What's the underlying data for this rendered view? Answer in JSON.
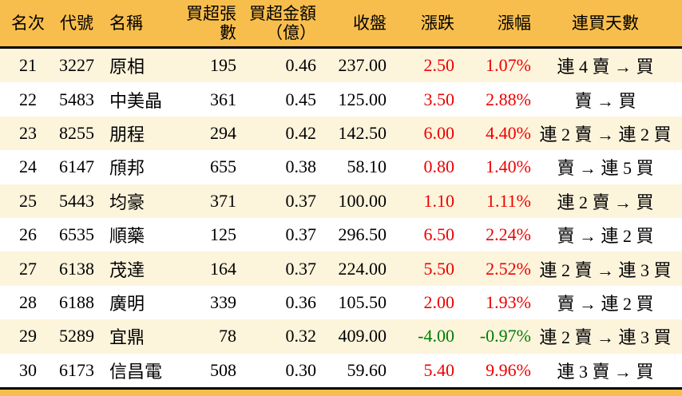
{
  "colors": {
    "frame": "#F8BE4D",
    "header_bg": "#F8BE4D",
    "row_bg": "#FFFFFF",
    "row_alt_bg": "#FDF4DC",
    "text": "#000000",
    "up": "#EC0000",
    "down": "#007E00",
    "divider": "#000000"
  },
  "table": {
    "columns": [
      {
        "key": "rank",
        "label": "名次"
      },
      {
        "key": "code",
        "label": "代號"
      },
      {
        "key": "name",
        "label": "名稱"
      },
      {
        "key": "volume",
        "label": "買超張數"
      },
      {
        "key": "amount",
        "label": "買超金額\n（億）"
      },
      {
        "key": "close",
        "label": "收盤"
      },
      {
        "key": "change",
        "label": "漲跌"
      },
      {
        "key": "change_pct",
        "label": "漲幅"
      },
      {
        "key": "streak",
        "label": "連買天數"
      }
    ],
    "rows": [
      {
        "rank": "21",
        "code": "3227",
        "name": "原相",
        "volume": "195",
        "amount": "0.46",
        "close": "237.00",
        "change": "2.50",
        "change_pct": "1.07%",
        "direction": "up",
        "streak": "連 4 賣 → 買"
      },
      {
        "rank": "22",
        "code": "5483",
        "name": "中美晶",
        "volume": "361",
        "amount": "0.45",
        "close": "125.00",
        "change": "3.50",
        "change_pct": "2.88%",
        "direction": "up",
        "streak": "賣 → 買"
      },
      {
        "rank": "23",
        "code": "8255",
        "name": "朋程",
        "volume": "294",
        "amount": "0.42",
        "close": "142.50",
        "change": "6.00",
        "change_pct": "4.40%",
        "direction": "up",
        "streak": "連 2 賣 → 連 2 買"
      },
      {
        "rank": "24",
        "code": "6147",
        "name": "頎邦",
        "volume": "655",
        "amount": "0.38",
        "close": "58.10",
        "change": "0.80",
        "change_pct": "1.40%",
        "direction": "up",
        "streak": "賣 → 連 5 買"
      },
      {
        "rank": "25",
        "code": "5443",
        "name": "均豪",
        "volume": "371",
        "amount": "0.37",
        "close": "100.00",
        "change": "1.10",
        "change_pct": "1.11%",
        "direction": "up",
        "streak": "連 2 賣 → 買"
      },
      {
        "rank": "26",
        "code": "6535",
        "name": "順藥",
        "volume": "125",
        "amount": "0.37",
        "close": "296.50",
        "change": "6.50",
        "change_pct": "2.24%",
        "direction": "up",
        "streak": "賣 → 連 2 買"
      },
      {
        "rank": "27",
        "code": "6138",
        "name": "茂達",
        "volume": "164",
        "amount": "0.37",
        "close": "224.00",
        "change": "5.50",
        "change_pct": "2.52%",
        "direction": "up",
        "streak": "連 2 賣 → 連 3 買"
      },
      {
        "rank": "28",
        "code": "6188",
        "name": "廣明",
        "volume": "339",
        "amount": "0.36",
        "close": "105.50",
        "change": "2.00",
        "change_pct": "1.93%",
        "direction": "up",
        "streak": "賣 → 連 2 買"
      },
      {
        "rank": "29",
        "code": "5289",
        "name": "宜鼎",
        "volume": "78",
        "amount": "0.32",
        "close": "409.00",
        "change": "-4.00",
        "change_pct": "-0.97%",
        "direction": "down",
        "streak": "連 2 賣 → 連 3 買"
      },
      {
        "rank": "30",
        "code": "6173",
        "name": "信昌電",
        "volume": "508",
        "amount": "0.30",
        "close": "59.60",
        "change": "5.40",
        "change_pct": "9.96%",
        "direction": "up",
        "streak": "連 3 賣 → 買"
      }
    ]
  },
  "chart_data": {
    "type": "table",
    "title": "買超排行 21-30（Top net-buy ranking rows 21-30）",
    "columns": [
      "名次",
      "代號",
      "名稱",
      "買超張數",
      "買超金額（億）",
      "收盤",
      "漲跌",
      "漲幅",
      "連買天數"
    ],
    "rows": [
      [
        21,
        "3227",
        "原相",
        195,
        0.46,
        237.0,
        2.5,
        "1.07%",
        "連 4 賣 → 買"
      ],
      [
        22,
        "5483",
        "中美晶",
        361,
        0.45,
        125.0,
        3.5,
        "2.88%",
        "賣 → 買"
      ],
      [
        23,
        "8255",
        "朋程",
        294,
        0.42,
        142.5,
        6.0,
        "4.40%",
        "連 2 賣 → 連 2 買"
      ],
      [
        24,
        "6147",
        "頎邦",
        655,
        0.38,
        58.1,
        0.8,
        "1.40%",
        "賣 → 連 5 買"
      ],
      [
        25,
        "5443",
        "均豪",
        371,
        0.37,
        100.0,
        1.1,
        "1.11%",
        "連 2 賣 → 買"
      ],
      [
        26,
        "6535",
        "順藥",
        125,
        0.37,
        296.5,
        6.5,
        "2.24%",
        "賣 → 連 2 買"
      ],
      [
        27,
        "6138",
        "茂達",
        164,
        0.37,
        224.0,
        5.5,
        "2.52%",
        "連 2 賣 → 連 3 買"
      ],
      [
        28,
        "6188",
        "廣明",
        339,
        0.36,
        105.5,
        2.0,
        "1.93%",
        "賣 → 連 2 買"
      ],
      [
        29,
        "5289",
        "宜鼎",
        78,
        0.32,
        409.0,
        -4.0,
        "-0.97%",
        "連 2 賣 → 連 3 買"
      ],
      [
        30,
        "6173",
        "信昌電",
        508,
        0.3,
        59.6,
        5.4,
        "9.96%",
        "連 3 賣 → 買"
      ]
    ]
  }
}
